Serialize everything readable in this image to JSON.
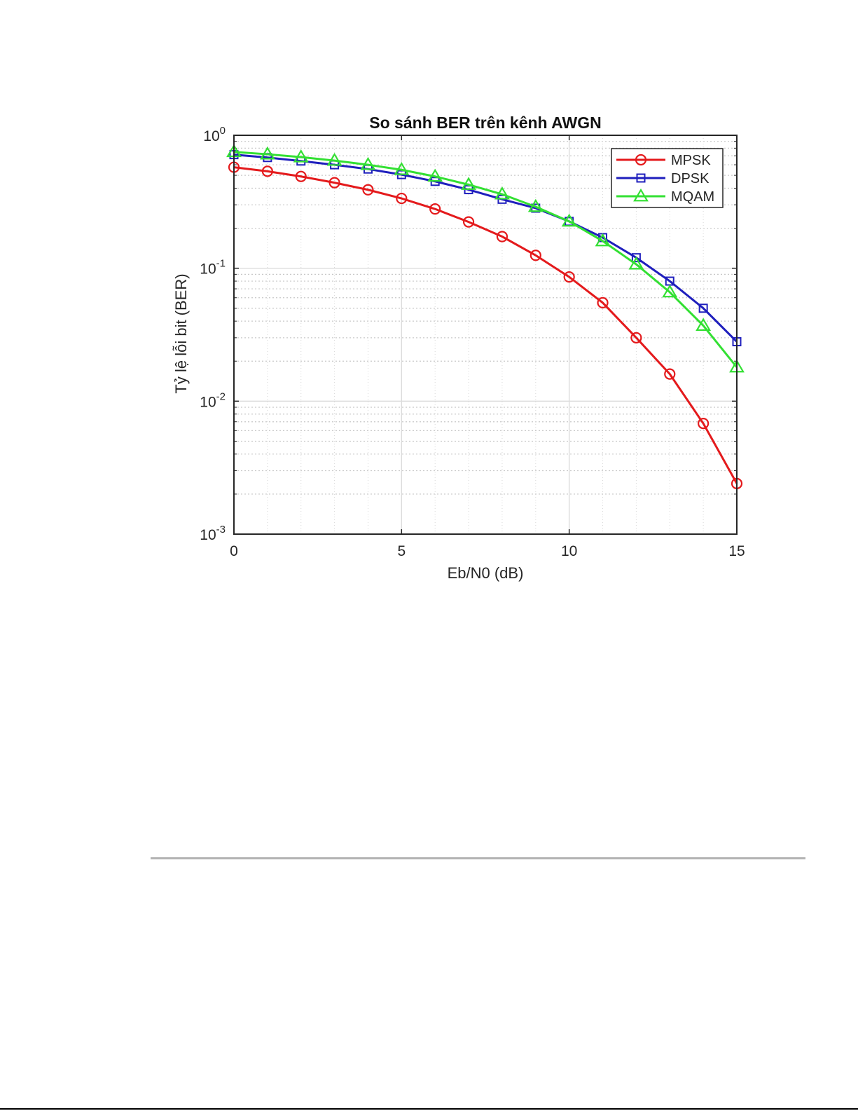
{
  "chart_data": {
    "type": "line",
    "title": "So sánh BER trên kênh AWGN",
    "xlabel": "Eb/N0 (dB)",
    "ylabel": "Tỷ lệ lỗi bit (BER)",
    "xlim": [
      0,
      15
    ],
    "ylim": [
      0.001,
      1
    ],
    "yscale": "log",
    "grid": true,
    "minor_grid": true,
    "legend_position": "top-right",
    "x_ticks": [
      0,
      5,
      10,
      15
    ],
    "y_ticks": [
      {
        "value": 1,
        "base": "10",
        "exp": "0"
      },
      {
        "value": 0.1,
        "base": "10",
        "exp": "-1"
      },
      {
        "value": 0.01,
        "base": "10",
        "exp": "-2"
      },
      {
        "value": 0.001,
        "base": "10",
        "exp": "-3"
      }
    ],
    "x": [
      0,
      1,
      2,
      3,
      4,
      5,
      6,
      7,
      8,
      9,
      10,
      11,
      12,
      13,
      14,
      15
    ],
    "series": [
      {
        "name": "MPSK",
        "color": "#e41a1c",
        "marker": "circle",
        "values": [
          0.575,
          0.536,
          0.49,
          0.44,
          0.389,
          0.335,
          0.279,
          0.223,
          0.173,
          0.125,
          0.086,
          0.055,
          0.03,
          0.016,
          0.0068,
          0.0024
        ]
      },
      {
        "name": "DPSK",
        "color": "#1f1fbd",
        "marker": "square",
        "values": [
          0.715,
          0.68,
          0.64,
          0.6,
          0.557,
          0.506,
          0.45,
          0.39,
          0.33,
          0.283,
          0.225,
          0.17,
          0.12,
          0.08,
          0.05,
          0.028
        ]
      },
      {
        "name": "MQAM",
        "color": "#33e033",
        "marker": "triangle",
        "values": [
          0.75,
          0.72,
          0.685,
          0.645,
          0.6,
          0.55,
          0.49,
          0.425,
          0.36,
          0.29,
          0.225,
          0.16,
          0.107,
          0.066,
          0.037,
          0.018
        ]
      }
    ]
  }
}
